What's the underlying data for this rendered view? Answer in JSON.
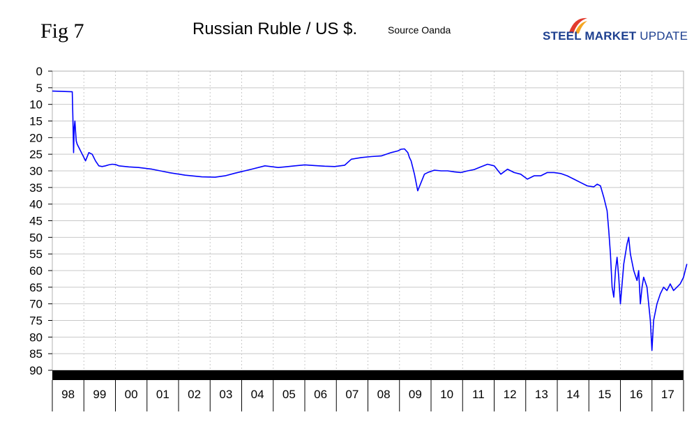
{
  "figure": {
    "fig_label": "Fig 7",
    "title": "Russian Ruble / US $.",
    "source": "Source Oanda"
  },
  "logo": {
    "word1": "STEEL",
    "word2": "MARKET",
    "word3": "UPDATE",
    "colors": {
      "text": "#1d3f8f",
      "swoosh_red": "#e23b2e",
      "swoosh_orange": "#f5a623"
    }
  },
  "colors": {
    "line": "#0000ff",
    "grid": "#c8c8c8",
    "axis_band": "#000000"
  },
  "chart_data": {
    "type": "line",
    "title": "Russian Ruble / US $.",
    "xlabel": "",
    "ylabel": "",
    "y_axis_inverted": true,
    "ylim": [
      0,
      90
    ],
    "yticks": [
      0,
      5,
      10,
      15,
      20,
      25,
      30,
      35,
      40,
      45,
      50,
      55,
      60,
      65,
      70,
      75,
      80,
      85,
      90
    ],
    "xlim": [
      1998.0,
      2017.0
    ],
    "xtick_labels": [
      "98",
      "99",
      "00",
      "01",
      "02",
      "03",
      "04",
      "05",
      "06",
      "07",
      "08",
      "09",
      "10",
      "11",
      "12",
      "13",
      "14",
      "15",
      "16",
      "17"
    ],
    "grid": true,
    "legend": "none",
    "series": [
      {
        "x": [
          1998.0,
          1998.3,
          1998.6,
          1998.62,
          1998.64,
          1998.66,
          1998.68,
          1998.7,
          1998.72,
          1998.75,
          1998.8,
          1998.85,
          1998.9,
          1998.95,
          1999.0,
          1999.1,
          1999.2,
          1999.25,
          1999.3,
          1999.4,
          1999.5,
          1999.6,
          1999.7,
          1999.8,
          1999.9,
          2000.0,
          2000.3,
          2000.6,
          2001.0,
          2001.5,
          2002.0,
          2002.5,
          2002.9,
          2003.2,
          2003.5,
          2004.0,
          2004.4,
          2004.8,
          2005.0,
          2005.3,
          2005.6,
          2005.9,
          2006.2,
          2006.5,
          2006.8,
          2007.0,
          2007.3,
          2007.6,
          2007.9,
          2008.2,
          2008.4,
          2008.5,
          2008.6,
          2008.7,
          2008.75,
          2008.8,
          2008.9,
          2009.0,
          2009.1,
          2009.2,
          2009.3,
          2009.5,
          2009.7,
          2009.9,
          2010.1,
          2010.3,
          2010.5,
          2010.7,
          2010.9,
          2011.1,
          2011.3,
          2011.5,
          2011.7,
          2011.9,
          2012.1,
          2012.3,
          2012.5,
          2012.7,
          2012.9,
          2013.1,
          2013.3,
          2013.5,
          2013.7,
          2013.9,
          2014.1,
          2014.3,
          2014.4,
          2014.5,
          2014.6,
          2014.7,
          2014.75,
          2014.8,
          2014.85,
          2014.9,
          2014.95,
          2015.0,
          2015.05,
          2015.1,
          2015.2,
          2015.3,
          2015.35,
          2015.4,
          2015.5,
          2015.6,
          2015.65,
          2015.7,
          2015.75,
          2015.8,
          2015.9,
          2015.95,
          2016.0,
          2016.05,
          2016.1,
          2016.2,
          2016.3,
          2016.4,
          2016.5,
          2016.6,
          2016.7,
          2016.8,
          2016.9,
          2017.0,
          2017.05,
          2017.1
        ],
        "y": [
          6,
          6.1,
          6.2,
          14,
          24.5,
          17,
          15,
          18,
          21,
          22,
          23,
          24,
          25,
          26,
          27,
          24.5,
          25,
          26,
          27,
          28.5,
          28.7,
          28.5,
          28.2,
          28,
          28.1,
          28.5,
          28.8,
          29,
          29.5,
          30.5,
          31.3,
          31.8,
          31.9,
          31.5,
          30.7,
          29.5,
          28.5,
          29,
          28.8,
          28.5,
          28.2,
          28.4,
          28.6,
          28.7,
          28.3,
          26.5,
          26,
          25.7,
          25.5,
          24.5,
          24,
          23.5,
          23.4,
          24.5,
          26,
          27,
          31,
          36,
          33.5,
          31,
          30.5,
          29.8,
          30,
          30,
          30.3,
          30.5,
          30,
          29.6,
          28.8,
          28,
          28.5,
          31,
          29.5,
          30.5,
          31,
          32.5,
          31.5,
          31.5,
          30.5,
          30.5,
          30.8,
          31.5,
          32.5,
          33.5,
          34.5,
          34.8,
          34,
          34.5,
          38,
          42,
          48,
          55,
          65,
          68,
          60,
          56,
          62,
          70,
          58,
          52,
          50,
          55,
          60,
          63,
          60,
          70,
          65,
          62,
          65,
          70,
          75,
          84,
          75,
          70,
          67,
          65,
          66,
          64,
          66,
          65,
          64,
          62,
          60,
          58
        ]
      }
    ]
  }
}
